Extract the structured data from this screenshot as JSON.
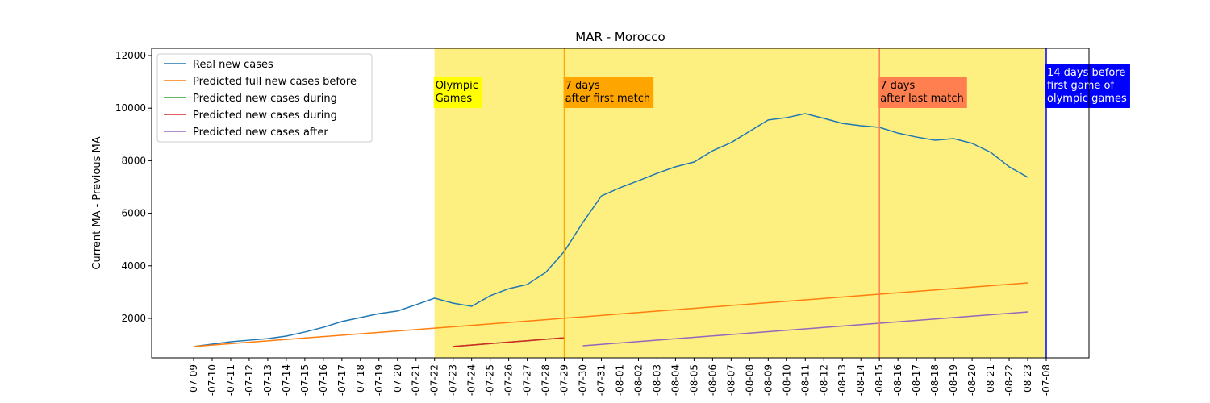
{
  "chart_data": {
    "type": "line",
    "title": "MAR - Morocco",
    "y_label": "Current MA - Previous MA",
    "categories": [
      "-07-09",
      "-07-10",
      "-07-11",
      "-07-12",
      "-07-13",
      "-07-14",
      "-07-15",
      "-07-16",
      "-07-17",
      "-07-18",
      "-07-19",
      "-07-20",
      "-07-21",
      "-07-22",
      "-07-23",
      "-07-24",
      "-07-25",
      "-07-26",
      "-07-27",
      "-07-28",
      "-07-29",
      "-07-30",
      "-07-31",
      "-08-01",
      "-08-02",
      "-08-03",
      "-08-04",
      "-08-05",
      "-08-06",
      "-08-07",
      "-08-08",
      "-08-09",
      "-08-10",
      "-08-11",
      "-08-12",
      "-08-13",
      "-08-14",
      "-08-15",
      "-08-16",
      "-08-17",
      "-08-18",
      "-08-19",
      "-08-20",
      "-08-21",
      "-08-22",
      "-08-23",
      "-07-08"
    ],
    "series": [
      {
        "name": "Real new cases",
        "color": "#1f77b4",
        "values": [
          926,
          1020,
          1110,
          1170,
          1230,
          1325,
          1480,
          1660,
          1880,
          2030,
          2180,
          2280,
          2520,
          2770,
          2580,
          2460,
          2860,
          3130,
          3290,
          3750,
          4550,
          5650,
          6660,
          6970,
          7240,
          7520,
          7770,
          7950,
          8380,
          8690,
          9120,
          9550,
          9640,
          9790,
          9610,
          9420,
          9330,
          9270,
          9050,
          8900,
          8780,
          8840,
          8660,
          8320,
          7770,
          7370,
          null
        ]
      },
      {
        "name": "Predicted full new cases before",
        "color": "#ff7f0e",
        "values": [
          930,
          984,
          1038,
          1091,
          1145,
          1199,
          1253,
          1306,
          1360,
          1414,
          1468,
          1521,
          1575,
          1629,
          1683,
          1737,
          1790,
          1844,
          1898,
          1952,
          2006,
          2059,
          2113,
          2167,
          2221,
          2275,
          2328,
          2382,
          2436,
          2490,
          2544,
          2597,
          2651,
          2705,
          2759,
          2813,
          2866,
          2920,
          2974,
          3028,
          3082,
          3135,
          3189,
          3243,
          3297,
          3350,
          null
        ]
      },
      {
        "name": "Predicted new cases during",
        "color": "#2ca02c",
        "values": [
          null,
          null,
          null,
          null,
          null,
          null,
          null,
          null,
          null,
          null,
          null,
          null,
          null,
          null,
          930,
          985,
          1040,
          1095,
          1150,
          1205,
          1260,
          null,
          null,
          null,
          null,
          null,
          null,
          null,
          null,
          null,
          null,
          null,
          null,
          null,
          null,
          null,
          null,
          null,
          null,
          null,
          null,
          null,
          null,
          null,
          null,
          null,
          null
        ]
      },
      {
        "name": "Predicted new cases during",
        "color": "#d62728",
        "values": [
          null,
          null,
          null,
          null,
          null,
          null,
          null,
          null,
          null,
          null,
          null,
          null,
          null,
          null,
          930,
          985,
          1040,
          1095,
          1150,
          1205,
          1260,
          null,
          null,
          null,
          null,
          null,
          null,
          null,
          null,
          null,
          null,
          null,
          null,
          null,
          null,
          null,
          null,
          null,
          null,
          null,
          null,
          null,
          null,
          null,
          null,
          null,
          null
        ]
      },
      {
        "name": "Predicted new cases after",
        "color": "#9467bd",
        "values": [
          null,
          null,
          null,
          null,
          null,
          null,
          null,
          null,
          null,
          null,
          null,
          null,
          null,
          null,
          null,
          null,
          null,
          null,
          null,
          null,
          null,
          957,
          1011,
          1064,
          1118,
          1172,
          1225,
          1279,
          1333,
          1386,
          1440,
          1494,
          1548,
          1601,
          1655,
          1709,
          1762,
          1816,
          1870,
          1923,
          1977,
          2031,
          2084,
          2138,
          2192,
          2245,
          null
        ]
      }
    ],
    "ylim": [
      497,
      12276
    ],
    "yticks": [
      2000,
      4000,
      6000,
      8000,
      10000,
      12000
    ],
    "legend": "upper left",
    "span": {
      "from": "-07-22",
      "to": "-07-08",
      "color": "#fef080"
    },
    "vlines": [
      {
        "x": "-07-29",
        "color": "#ffa500",
        "label": "7 days\nafter first metch",
        "text_color": "#000000"
      },
      {
        "x": "-08-15",
        "color": "#ff7f50",
        "label": "7 days\nafter last match",
        "text_color": "#000000"
      },
      {
        "x": "-07-08",
        "color": "#0000ff",
        "label": "14 days before\nfirst game of\nolympic games",
        "text_color": "#ffffff"
      }
    ],
    "span_label": {
      "label": "Olympic\nGames",
      "color": "#ffff00"
    }
  }
}
